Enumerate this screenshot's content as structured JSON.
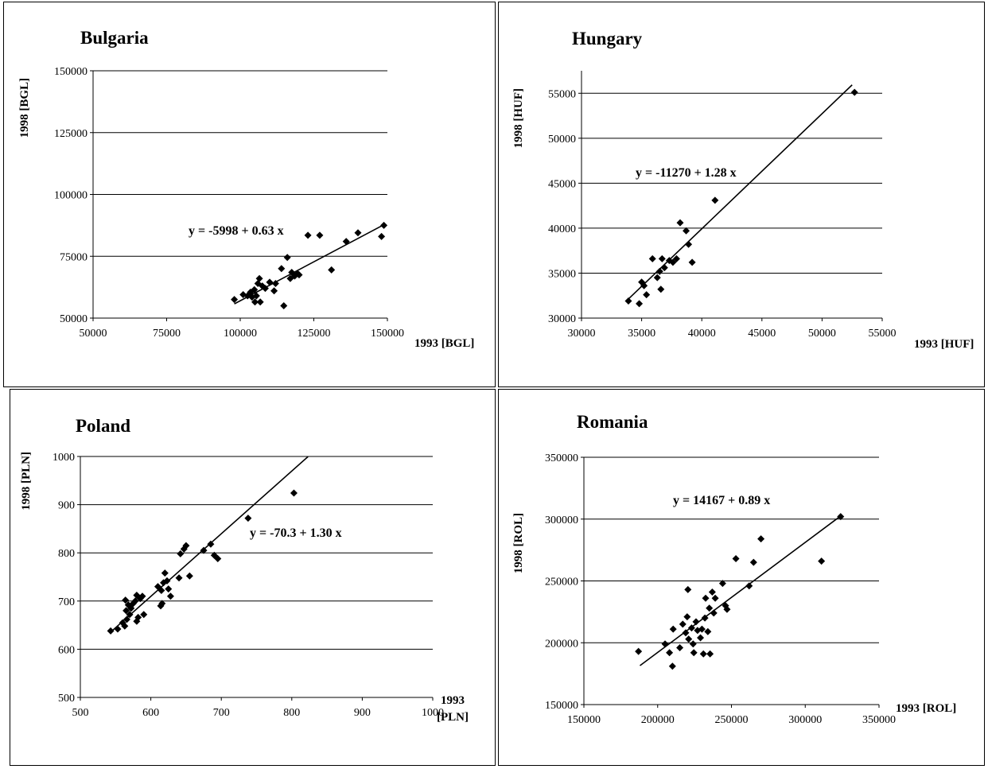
{
  "chart_data": [
    {
      "type": "scatter",
      "title": "Bulgaria",
      "xlabel": "1993 [BGL]",
      "ylabel": "1998 [BGL]",
      "xlim": [
        50000,
        150000
      ],
      "ylim": [
        50000,
        150000
      ],
      "xticks": [
        50000,
        75000,
        100000,
        125000,
        150000
      ],
      "yticks": [
        50000,
        75000,
        100000,
        125000,
        150000
      ],
      "grid": "horizontal",
      "equation": "y = -5998 + 0.63 x",
      "trendline": {
        "intercept": -5998,
        "slope": 0.63,
        "x_range": [
          98000,
          149000
        ]
      },
      "points": [
        [
          98000,
          57500
        ],
        [
          101000,
          59500
        ],
        [
          102500,
          59000
        ],
        [
          103500,
          60500
        ],
        [
          104000,
          58500
        ],
        [
          104800,
          61500
        ],
        [
          105000,
          56500
        ],
        [
          105500,
          59000
        ],
        [
          106000,
          64000
        ],
        [
          106500,
          66000
        ],
        [
          106800,
          56500
        ],
        [
          107500,
          63000
        ],
        [
          108500,
          62000
        ],
        [
          110000,
          64500
        ],
        [
          111500,
          61000
        ],
        [
          112000,
          64000
        ],
        [
          114000,
          70000
        ],
        [
          114800,
          55000
        ],
        [
          116000,
          74500
        ],
        [
          117000,
          66000
        ],
        [
          117500,
          68500
        ],
        [
          118500,
          67000
        ],
        [
          119500,
          68000
        ],
        [
          120000,
          67500
        ],
        [
          123000,
          83500
        ],
        [
          127000,
          83500
        ],
        [
          131000,
          69500
        ],
        [
          136000,
          81000
        ],
        [
          140000,
          84500
        ],
        [
          148000,
          83000
        ],
        [
          148800,
          87500
        ]
      ]
    },
    {
      "type": "scatter",
      "title": "Hungary",
      "xlabel": "1993 [HUF]",
      "ylabel": "1998 [HUF]",
      "xlim": [
        30000,
        55000
      ],
      "ylim": [
        30000,
        57500
      ],
      "xticks": [
        30000,
        35000,
        40000,
        45000,
        50000,
        55000
      ],
      "yticks": [
        30000,
        35000,
        40000,
        45000,
        50000,
        55000
      ],
      "grid": "horizontal",
      "equation": "y = -11270 + 1.28 x",
      "trendline": {
        "intercept": -11270,
        "slope": 1.28,
        "x_range": [
          33800,
          52500
        ]
      },
      "points": [
        [
          33900,
          31900
        ],
        [
          34800,
          31600
        ],
        [
          35000,
          34000
        ],
        [
          35200,
          33600
        ],
        [
          35400,
          32600
        ],
        [
          35900,
          36600
        ],
        [
          36300,
          34500
        ],
        [
          36500,
          35200
        ],
        [
          36600,
          33200
        ],
        [
          36700,
          36600
        ],
        [
          36900,
          35600
        ],
        [
          37300,
          36400
        ],
        [
          37600,
          36200
        ],
        [
          37900,
          36600
        ],
        [
          38200,
          40600
        ],
        [
          38700,
          39700
        ],
        [
          38900,
          38200
        ],
        [
          39200,
          36200
        ],
        [
          41100,
          43100
        ],
        [
          52700,
          55100
        ]
      ]
    },
    {
      "type": "scatter",
      "title": "Poland",
      "xlabel": "1993 [PLN]",
      "ylabel": "1998 [PLN]",
      "xlim": [
        500,
        1000
      ],
      "ylim": [
        500,
        1000
      ],
      "xticks": [
        500,
        600,
        700,
        800,
        900,
        1000
      ],
      "yticks": [
        500,
        600,
        700,
        800,
        900,
        1000
      ],
      "grid": "horizontal",
      "equation": "y = -70.3 + 1.30 x",
      "trendline": {
        "intercept": -70.3,
        "slope": 1.3,
        "x_range": [
          543,
          823
        ]
      },
      "points": [
        [
          543,
          638
        ],
        [
          553,
          642
        ],
        [
          560,
          655
        ],
        [
          563,
          648
        ],
        [
          564,
          702
        ],
        [
          565,
          680
        ],
        [
          566,
          662
        ],
        [
          568,
          692
        ],
        [
          570,
          672
        ],
        [
          572,
          685
        ],
        [
          575,
          695
        ],
        [
          578,
          700
        ],
        [
          580,
          712
        ],
        [
          580,
          658
        ],
        [
          582,
          666
        ],
        [
          585,
          705
        ],
        [
          588,
          710
        ],
        [
          590,
          672
        ],
        [
          610,
          730
        ],
        [
          614,
          690
        ],
        [
          615,
          722
        ],
        [
          616,
          695
        ],
        [
          618,
          738
        ],
        [
          620,
          758
        ],
        [
          623,
          742
        ],
        [
          625,
          725
        ],
        [
          628,
          710
        ],
        [
          640,
          748
        ],
        [
          642,
          798
        ],
        [
          647,
          808
        ],
        [
          650,
          815
        ],
        [
          655,
          752
        ],
        [
          675,
          805
        ],
        [
          685,
          818
        ],
        [
          690,
          795
        ],
        [
          695,
          788
        ],
        [
          738,
          872
        ],
        [
          803,
          924
        ]
      ]
    },
    {
      "type": "scatter",
      "title": "Romania",
      "xlabel": "1993 [ROL]",
      "ylabel": "1998 [ROL]",
      "xlim": [
        150000,
        350000
      ],
      "ylim": [
        150000,
        350000
      ],
      "xticks": [
        150000,
        200000,
        250000,
        300000,
        350000
      ],
      "yticks": [
        150000,
        200000,
        250000,
        300000,
        350000
      ],
      "grid": "horizontal",
      "equation": "y = 14167 + 0.89 x",
      "trendline": {
        "intercept": 14167,
        "slope": 0.89,
        "x_range": [
          188000,
          325000
        ]
      },
      "points": [
        [
          187000,
          193000
        ],
        [
          205000,
          199000
        ],
        [
          208000,
          192000
        ],
        [
          210000,
          181000
        ],
        [
          210500,
          211000
        ],
        [
          215000,
          196000
        ],
        [
          217000,
          215000
        ],
        [
          219000,
          208000
        ],
        [
          220000,
          221000
        ],
        [
          220500,
          243000
        ],
        [
          221000,
          203000
        ],
        [
          223000,
          212000
        ],
        [
          224000,
          199000
        ],
        [
          224500,
          192000
        ],
        [
          226000,
          217000
        ],
        [
          227000,
          210000
        ],
        [
          229000,
          204000
        ],
        [
          230000,
          211000
        ],
        [
          231000,
          191000
        ],
        [
          232000,
          220000
        ],
        [
          232500,
          236000
        ],
        [
          234000,
          209000
        ],
        [
          235000,
          228000
        ],
        [
          235500,
          191000
        ],
        [
          237000,
          241000
        ],
        [
          238000,
          224000
        ],
        [
          239000,
          236000
        ],
        [
          244000,
          248000
        ],
        [
          246000,
          230000
        ],
        [
          247000,
          227000
        ],
        [
          253000,
          268000
        ],
        [
          262000,
          246000
        ],
        [
          265000,
          265000
        ],
        [
          270000,
          284000
        ],
        [
          311000,
          266000
        ],
        [
          324000,
          302000
        ]
      ]
    }
  ]
}
